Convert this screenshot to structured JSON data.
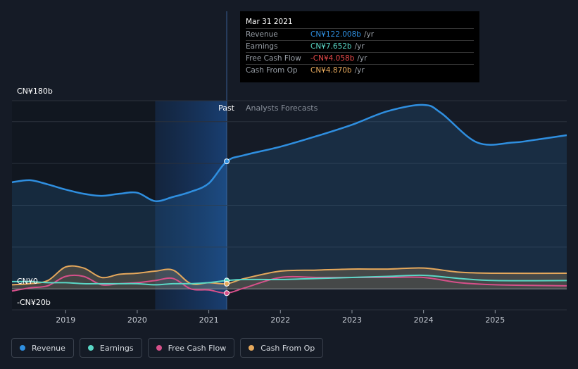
{
  "chart_data": {
    "type": "line",
    "y_unit_label_top": "CN¥180b",
    "y_unit_label_zero": "CN¥0",
    "y_unit_label_bottom": "-CN¥20b",
    "ylim": [
      -20,
      180
    ],
    "xlim": [
      2018.25,
      2026.0
    ],
    "x_ticks": [
      {
        "x": 2019,
        "label": "2019"
      },
      {
        "x": 2020,
        "label": "2020"
      },
      {
        "x": 2021,
        "label": "2021"
      },
      {
        "x": 2022,
        "label": "2022"
      },
      {
        "x": 2023,
        "label": "2023"
      },
      {
        "x": 2024,
        "label": "2024"
      },
      {
        "x": 2025,
        "label": "2025"
      }
    ],
    "grid": true,
    "past_label": "Past",
    "forecast_label": "Analysts Forecasts",
    "past_start": 2020.25,
    "past_end": 2021.25,
    "series": [
      {
        "name": "Revenue",
        "color": "#2f8fe0",
        "fill": true,
        "points": [
          [
            2018.25,
            102
          ],
          [
            2018.5,
            104
          ],
          [
            2018.75,
            100
          ],
          [
            2019.0,
            95
          ],
          [
            2019.25,
            91
          ],
          [
            2019.5,
            89
          ],
          [
            2019.75,
            91
          ],
          [
            2020.0,
            92
          ],
          [
            2020.25,
            84
          ],
          [
            2020.5,
            88
          ],
          [
            2020.75,
            93
          ],
          [
            2021.0,
            101
          ],
          [
            2021.25,
            122
          ],
          [
            2021.5,
            128
          ],
          [
            2022.0,
            136
          ],
          [
            2022.5,
            146
          ],
          [
            2023.0,
            157
          ],
          [
            2023.5,
            170
          ],
          [
            2024.0,
            176
          ],
          [
            2024.25,
            168
          ],
          [
            2024.75,
            140
          ],
          [
            2025.25,
            140
          ],
          [
            2025.5,
            142
          ],
          [
            2026.0,
            147
          ]
        ]
      },
      {
        "name": "Earnings",
        "color": "#5ad7c6",
        "fill": false,
        "points": [
          [
            2018.25,
            7
          ],
          [
            2018.5,
            7
          ],
          [
            2018.75,
            6
          ],
          [
            2019.0,
            6
          ],
          [
            2019.25,
            5
          ],
          [
            2019.5,
            5
          ],
          [
            2019.75,
            5
          ],
          [
            2020.0,
            5
          ],
          [
            2020.25,
            4
          ],
          [
            2020.5,
            5
          ],
          [
            2020.75,
            5
          ],
          [
            2021.0,
            6
          ],
          [
            2021.25,
            8
          ],
          [
            2021.5,
            9
          ],
          [
            2022.0,
            9
          ],
          [
            2022.5,
            10
          ],
          [
            2023.0,
            11
          ],
          [
            2023.5,
            12
          ],
          [
            2024.0,
            13
          ],
          [
            2024.5,
            10
          ],
          [
            2025.0,
            8
          ],
          [
            2026.0,
            8
          ]
        ]
      },
      {
        "name": "Free Cash Flow",
        "color": "#d6508a",
        "fill": false,
        "points": [
          [
            2018.25,
            -2
          ],
          [
            2018.5,
            1
          ],
          [
            2018.75,
            3
          ],
          [
            2019.0,
            12
          ],
          [
            2019.25,
            12
          ],
          [
            2019.5,
            4
          ],
          [
            2019.75,
            5
          ],
          [
            2020.0,
            6
          ],
          [
            2020.25,
            8
          ],
          [
            2020.5,
            10
          ],
          [
            2020.75,
            0
          ],
          [
            2021.0,
            -1
          ],
          [
            2021.25,
            -4
          ],
          [
            2021.5,
            1
          ],
          [
            2022.0,
            11
          ],
          [
            2022.5,
            11
          ],
          [
            2023.0,
            11
          ],
          [
            2023.5,
            11
          ],
          [
            2024.0,
            11
          ],
          [
            2024.5,
            6
          ],
          [
            2025.0,
            4
          ],
          [
            2026.0,
            3
          ]
        ]
      },
      {
        "name": "Cash From Op",
        "color": "#e5a85c",
        "fill": true,
        "points": [
          [
            2018.25,
            4
          ],
          [
            2018.5,
            5
          ],
          [
            2018.75,
            8
          ],
          [
            2019.0,
            21
          ],
          [
            2019.25,
            20
          ],
          [
            2019.5,
            11
          ],
          [
            2019.75,
            14
          ],
          [
            2020.0,
            15
          ],
          [
            2020.25,
            17
          ],
          [
            2020.5,
            18
          ],
          [
            2020.75,
            5
          ],
          [
            2021.0,
            6
          ],
          [
            2021.25,
            5
          ],
          [
            2021.5,
            10
          ],
          [
            2022.0,
            17
          ],
          [
            2022.5,
            18
          ],
          [
            2023.0,
            19
          ],
          [
            2023.5,
            19
          ],
          [
            2024.0,
            20
          ],
          [
            2024.5,
            16
          ],
          [
            2025.0,
            15
          ],
          [
            2026.0,
            15
          ]
        ]
      }
    ],
    "highlight_x": 2021.25,
    "highlight_values": [
      122,
      8,
      -4,
      5
    ]
  },
  "tooltip": {
    "date": "Mar 31 2021",
    "rows": [
      {
        "name": "Revenue",
        "value": "CN¥122.008b",
        "unit": "/yr",
        "color": "#2f8fe0"
      },
      {
        "name": "Earnings",
        "value": "CN¥7.652b",
        "unit": "/yr",
        "color": "#5ad7c6"
      },
      {
        "name": "Free Cash Flow",
        "value": "-CN¥4.058b",
        "unit": "/yr",
        "color": "#e84a4a"
      },
      {
        "name": "Cash From Op",
        "value": "CN¥4.870b",
        "unit": "/yr",
        "color": "#e5a85c"
      }
    ]
  },
  "legend": [
    {
      "label": "Revenue",
      "color": "#2f8fe0"
    },
    {
      "label": "Earnings",
      "color": "#5ad7c6"
    },
    {
      "label": "Free Cash Flow",
      "color": "#d6508a"
    },
    {
      "label": "Cash From Op",
      "color": "#e5a85c"
    }
  ]
}
